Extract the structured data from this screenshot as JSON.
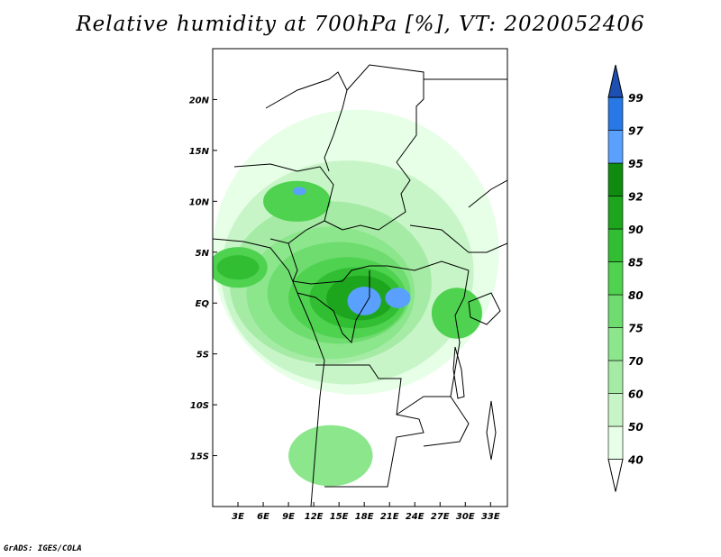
{
  "title": "Relative humidity at 700hPa [%], VT: 2020052406",
  "credit": "GrADS: IGES/COLA",
  "map": {
    "lon_range": [
      0,
      35
    ],
    "lat_range": [
      -20,
      25
    ],
    "lon_ticks": [
      {
        "value": 3,
        "label": "3E"
      },
      {
        "value": 6,
        "label": "6E"
      },
      {
        "value": 9,
        "label": "9E"
      },
      {
        "value": 12,
        "label": "12E"
      },
      {
        "value": 15,
        "label": "15E"
      },
      {
        "value": 18,
        "label": "18E"
      },
      {
        "value": 21,
        "label": "21E"
      },
      {
        "value": 24,
        "label": "24E"
      },
      {
        "value": 27,
        "label": "27E"
      },
      {
        "value": 30,
        "label": "30E"
      },
      {
        "value": 33,
        "label": "33E"
      }
    ],
    "lat_ticks": [
      {
        "value": 20,
        "label": "20N"
      },
      {
        "value": 15,
        "label": "15N"
      },
      {
        "value": 10,
        "label": "10N"
      },
      {
        "value": 5,
        "label": "5N"
      },
      {
        "value": 0,
        "label": "EQ"
      },
      {
        "value": -5,
        "label": "5S"
      },
      {
        "value": -10,
        "label": "10S"
      },
      {
        "value": -15,
        "label": "15S"
      }
    ]
  },
  "colorbar": {
    "levels": [
      "40",
      "50",
      "60",
      "70",
      "75",
      "80",
      "85",
      "90",
      "92",
      "95",
      "97",
      "99"
    ],
    "colors": [
      "#ffffff",
      "#e6ffe6",
      "#c8f5c8",
      "#a5eba5",
      "#8ce68c",
      "#6edc6e",
      "#4fd24f",
      "#32be32",
      "#1ea51e",
      "#0f8c0f",
      "#5aa0ff",
      "#2878e6",
      "#1e50b4"
    ]
  },
  "humidity_fields": [
    {
      "level": 40,
      "color_index": 1,
      "center": [
        17,
        5
      ],
      "radii": [
        17,
        14
      ]
    },
    {
      "level": 50,
      "color_index": 2,
      "center": [
        16,
        3
      ],
      "radii": [
        15,
        11
      ]
    },
    {
      "level": 60,
      "color_index": 3,
      "center": [
        14,
        2
      ],
      "radii": [
        12,
        8
      ]
    },
    {
      "level": 70,
      "color_index": 4,
      "center": [
        14,
        1
      ],
      "radii": [
        10,
        6.5
      ]
    },
    {
      "level": 75,
      "color_index": 5,
      "center": [
        15,
        1
      ],
      "radii": [
        8.5,
        5
      ]
    },
    {
      "level": 80,
      "color_index": 6,
      "center": [
        16,
        0.5
      ],
      "radii": [
        7,
        4
      ]
    },
    {
      "level": 85,
      "color_index": 7,
      "center": [
        17,
        0.5
      ],
      "radii": [
        5.5,
        3
      ]
    },
    {
      "level": 90,
      "color_index": 8,
      "center": [
        17.5,
        0.5
      ],
      "radii": [
        4,
        2.2
      ]
    },
    {
      "level": 95,
      "color_index": 10,
      "center": [
        18,
        0.2
      ],
      "radii": [
        2,
        1.4
      ]
    },
    {
      "level": 95,
      "color_index": 10,
      "center": [
        22,
        0.5
      ],
      "radii": [
        1.5,
        1
      ]
    },
    {
      "level": 80,
      "color_index": 6,
      "center": [
        3,
        3.5
      ],
      "radii": [
        3.5,
        2
      ]
    },
    {
      "level": 85,
      "color_index": 7,
      "center": [
        3,
        3.5
      ],
      "radii": [
        2.5,
        1.2
      ]
    },
    {
      "level": 80,
      "color_index": 6,
      "center": [
        10,
        10
      ],
      "radii": [
        4,
        2
      ]
    },
    {
      "level": 95,
      "color_index": 10,
      "center": [
        10.3,
        11
      ],
      "radii": [
        0.8,
        0.4
      ]
    },
    {
      "level": 80,
      "color_index": 6,
      "center": [
        29,
        -1
      ],
      "radii": [
        3,
        2.5
      ]
    },
    {
      "level": 70,
      "color_index": 4,
      "center": [
        14,
        -15
      ],
      "radii": [
        5,
        3
      ]
    }
  ]
}
